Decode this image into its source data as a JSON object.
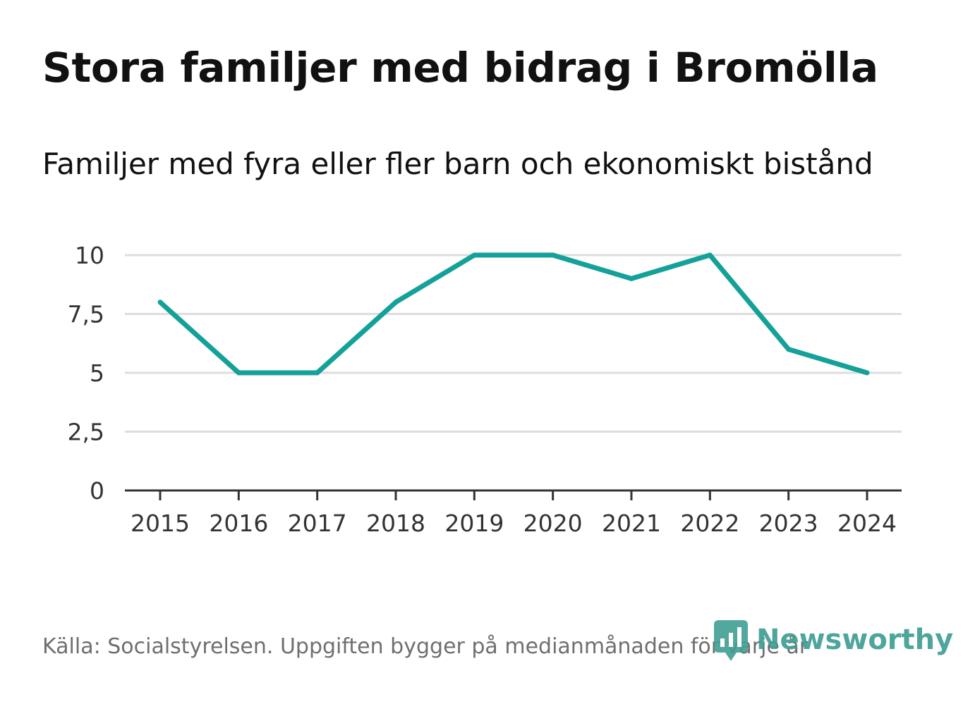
{
  "chart_data": {
    "type": "line",
    "title": "Stora familjer med bidrag i Bromölla",
    "subtitle": "Familjer med fyra eller fler barn och ekonomiskt bistånd",
    "x": [
      "2015",
      "2016",
      "2017",
      "2018",
      "2019",
      "2020",
      "2021",
      "2022",
      "2023",
      "2024"
    ],
    "series": [
      {
        "name": "Familjer",
        "values": [
          8,
          5,
          5,
          8,
          10,
          10,
          9,
          10,
          6,
          5
        ]
      }
    ],
    "ylim": [
      0,
      10
    ],
    "yticks": [
      0,
      2.5,
      5,
      7.5,
      10
    ],
    "ytick_labels": [
      "0",
      "2,5",
      "5",
      "7,5",
      "10"
    ],
    "xlabel": "",
    "ylabel": "",
    "grid": true,
    "line_color": "#14a19a",
    "source": "Källa: Socialstyrelsen. Uppgiften bygger på medianmånaden för varje år"
  },
  "brand": {
    "name": "Newsworthy",
    "logo_icon": "newsworthy-logo-icon",
    "color": "#3f9e94"
  }
}
